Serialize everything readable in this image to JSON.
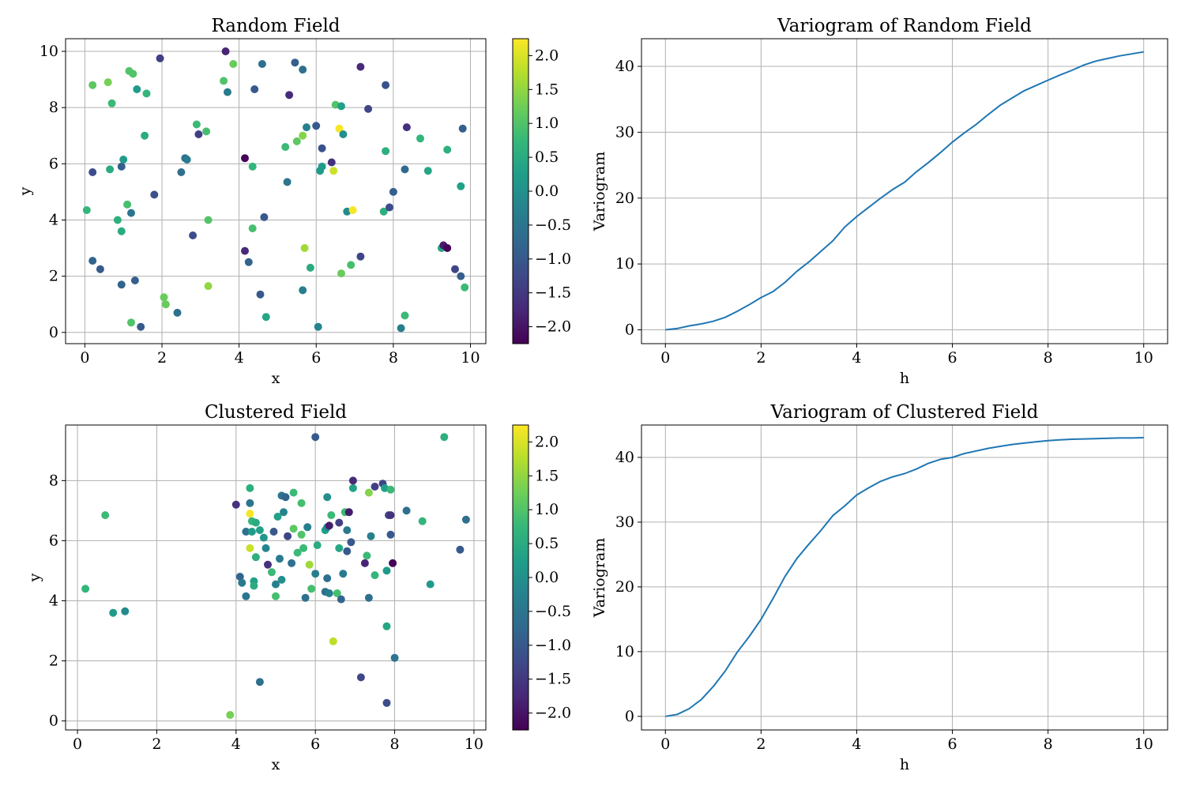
{
  "colors": {
    "line": "#1f77b4",
    "grid": "#b0b0b0",
    "axis": "#000000",
    "viridis": [
      "#440154",
      "#482878",
      "#3e4989",
      "#31688e",
      "#26828e",
      "#1f9e89",
      "#35b779",
      "#6ece58",
      "#b5de2b",
      "#fde725"
    ]
  },
  "chart_data": [
    {
      "id": "random-field",
      "type": "scatter",
      "title": "Random Field",
      "xlabel": "x",
      "ylabel": "y",
      "xlim": [
        -0.5,
        10.4
      ],
      "ylim": [
        -0.4,
        10.45
      ],
      "xticks": [
        0,
        2,
        4,
        6,
        8,
        10
      ],
      "xtick_labels": [
        "0",
        "2",
        "4",
        "6",
        "8",
        "10"
      ],
      "yticks": [
        0,
        2,
        4,
        6,
        8,
        10
      ],
      "ytick_labels": [
        "0",
        "2",
        "4",
        "6",
        "8",
        "10"
      ],
      "grid": true,
      "colorbar": {
        "vmin": -2.25,
        "vmax": 2.25,
        "ticks": [
          2.0,
          1.5,
          1.0,
          0.5,
          0.0,
          -0.5,
          -1.0,
          -1.5,
          -2.0
        ],
        "tick_labels": [
          "2.0",
          "1.5",
          "1.0",
          "0.5",
          "0.0",
          "−0.5",
          "−1.0",
          "−1.5",
          "−2.0"
        ]
      },
      "points": [
        [
          0.05,
          4.35,
          0.7
        ],
        [
          0.2,
          5.7,
          -1.2
        ],
        [
          0.2,
          2.55,
          -0.8
        ],
        [
          0.2,
          8.8,
          1.1
        ],
        [
          0.4,
          2.25,
          -1.0
        ],
        [
          0.6,
          8.9,
          1.3
        ],
        [
          0.65,
          5.8,
          0.5
        ],
        [
          0.7,
          8.15,
          0.8
        ],
        [
          0.85,
          4.0,
          0.6
        ],
        [
          0.95,
          5.9,
          -0.9
        ],
        [
          0.95,
          3.6,
          0.5
        ],
        [
          0.95,
          1.7,
          -0.8
        ],
        [
          1.0,
          6.15,
          0.2
        ],
        [
          1.1,
          4.55,
          0.9
        ],
        [
          1.15,
          9.3,
          1.0
        ],
        [
          1.2,
          4.25,
          -0.5
        ],
        [
          1.2,
          0.35,
          1.0
        ],
        [
          1.25,
          9.2,
          1.0
        ],
        [
          1.3,
          1.85,
          -0.9
        ],
        [
          1.35,
          8.65,
          0.2
        ],
        [
          1.45,
          0.2,
          -1.0
        ],
        [
          1.55,
          7.0,
          0.5
        ],
        [
          1.6,
          8.5,
          0.7
        ],
        [
          1.8,
          4.9,
          -1.1
        ],
        [
          1.95,
          9.75,
          -1.4
        ],
        [
          2.05,
          1.25,
          1.2
        ],
        [
          2.1,
          1.0,
          1.2
        ],
        [
          2.4,
          0.7,
          -0.6
        ],
        [
          2.5,
          5.7,
          -0.6
        ],
        [
          2.6,
          6.2,
          -0.6
        ],
        [
          2.65,
          6.15,
          -0.4
        ],
        [
          2.8,
          3.45,
          -1.2
        ],
        [
          2.9,
          7.4,
          0.8
        ],
        [
          2.95,
          7.05,
          -1.4
        ],
        [
          3.15,
          7.15,
          0.9
        ],
        [
          3.2,
          4.0,
          1.0
        ],
        [
          3.2,
          1.65,
          1.5
        ],
        [
          3.6,
          8.95,
          1.0
        ],
        [
          3.65,
          10.0,
          -1.8
        ],
        [
          3.7,
          8.55,
          -0.4
        ],
        [
          3.85,
          9.55,
          1.2
        ],
        [
          4.15,
          6.2,
          -2.2
        ],
        [
          4.15,
          2.9,
          -1.7
        ],
        [
          4.25,
          2.5,
          -0.8
        ],
        [
          4.35,
          3.7,
          0.9
        ],
        [
          4.35,
          5.9,
          0.7
        ],
        [
          4.4,
          8.65,
          -1.0
        ],
        [
          4.55,
          1.35,
          -1.0
        ],
        [
          4.6,
          9.55,
          -0.6
        ],
        [
          4.65,
          4.1,
          -1.0
        ],
        [
          4.7,
          0.55,
          0.4
        ],
        [
          5.2,
          6.6,
          0.8
        ],
        [
          5.25,
          5.35,
          -0.5
        ],
        [
          5.3,
          8.45,
          -1.7
        ],
        [
          5.45,
          9.6,
          -0.9
        ],
        [
          5.5,
          6.8,
          1.1
        ],
        [
          5.65,
          7.0,
          1.4
        ],
        [
          5.65,
          9.35,
          -0.6
        ],
        [
          5.65,
          1.5,
          -0.3
        ],
        [
          5.7,
          3.0,
          1.6
        ],
        [
          5.75,
          7.3,
          -0.3
        ],
        [
          5.85,
          2.3,
          0.5
        ],
        [
          6.0,
          7.35,
          -1.0
        ],
        [
          6.05,
          0.2,
          -0.2
        ],
        [
          6.1,
          5.75,
          0.2
        ],
        [
          6.15,
          5.9,
          0.2
        ],
        [
          6.15,
          6.55,
          -1.1
        ],
        [
          6.4,
          6.05,
          -1.6
        ],
        [
          6.45,
          5.75,
          1.9
        ],
        [
          6.5,
          8.1,
          1.0
        ],
        [
          6.6,
          7.25,
          2.2
        ],
        [
          6.65,
          8.05,
          0.3
        ],
        [
          6.65,
          2.1,
          1.2
        ],
        [
          6.7,
          7.05,
          0.0
        ],
        [
          6.8,
          4.3,
          -0.1
        ],
        [
          6.95,
          4.35,
          2.2
        ],
        [
          6.9,
          2.4,
          0.9
        ],
        [
          7.15,
          9.45,
          -1.7
        ],
        [
          7.15,
          2.7,
          -1.3
        ],
        [
          7.35,
          7.95,
          -1.3
        ],
        [
          7.75,
          4.3,
          0.6
        ],
        [
          7.8,
          8.8,
          -1.1
        ],
        [
          7.8,
          6.45,
          0.6
        ],
        [
          7.9,
          4.45,
          -1.2
        ],
        [
          8.0,
          5.0,
          -0.9
        ],
        [
          8.2,
          0.15,
          -0.3
        ],
        [
          8.3,
          0.6,
          0.8
        ],
        [
          8.3,
          5.8,
          -0.7
        ],
        [
          8.35,
          7.3,
          -1.6
        ],
        [
          8.7,
          6.9,
          0.7
        ],
        [
          8.9,
          5.75,
          0.4
        ],
        [
          9.25,
          3.0,
          0.4
        ],
        [
          9.3,
          3.1,
          -1.9
        ],
        [
          9.4,
          3.0,
          -2.2
        ],
        [
          9.4,
          6.5,
          0.6
        ],
        [
          9.6,
          2.25,
          -1.3
        ],
        [
          9.75,
          2.0,
          -0.9
        ],
        [
          9.75,
          5.2,
          0.3
        ],
        [
          9.8,
          7.25,
          -0.9
        ],
        [
          9.85,
          1.6,
          0.8
        ]
      ]
    },
    {
      "id": "variogram-random",
      "type": "line",
      "title": "Variogram of Random Field",
      "xlabel": "h",
      "ylabel": "Variogram",
      "xlim": [
        -0.5,
        10.5
      ],
      "ylim": [
        -2.1,
        44.2
      ],
      "xticks": [
        0,
        2,
        4,
        6,
        8,
        10
      ],
      "xtick_labels": [
        "0",
        "2",
        "4",
        "6",
        "8",
        "10"
      ],
      "yticks": [
        0,
        10,
        20,
        30,
        40
      ],
      "ytick_labels": [
        "0",
        "10",
        "20",
        "30",
        "40"
      ],
      "grid": true,
      "x": [
        0,
        0.25,
        0.5,
        0.75,
        1.0,
        1.25,
        1.5,
        1.75,
        2.0,
        2.25,
        2.5,
        2.75,
        3.0,
        3.25,
        3.5,
        3.75,
        4.0,
        4.25,
        4.5,
        4.75,
        5.0,
        5.25,
        5.5,
        5.75,
        6.0,
        6.25,
        6.5,
        6.75,
        7.0,
        7.25,
        7.5,
        7.75,
        8.0,
        8.25,
        8.5,
        8.75,
        9.0,
        9.25,
        9.5,
        9.75,
        10.0
      ],
      "y": [
        0,
        0.2,
        0.6,
        0.9,
        1.3,
        1.9,
        2.8,
        3.8,
        4.9,
        5.8,
        7.2,
        8.9,
        10.3,
        11.9,
        13.5,
        15.6,
        17.2,
        18.6,
        20.0,
        21.3,
        22.4,
        24.0,
        25.4,
        26.9,
        28.5,
        29.9,
        31.2,
        32.7,
        34.1,
        35.2,
        36.3,
        37.1,
        37.9,
        38.7,
        39.4,
        40.2,
        40.8,
        41.2,
        41.6,
        41.9,
        42.2
      ]
    },
    {
      "id": "clustered-field",
      "type": "scatter",
      "title": "Clustered Field",
      "xlabel": "x",
      "ylabel": "y",
      "xlim": [
        -0.3,
        10.3
      ],
      "ylim": [
        -0.3,
        9.85
      ],
      "xticks": [
        0,
        2,
        4,
        6,
        8,
        10
      ],
      "xtick_labels": [
        "0",
        "2",
        "4",
        "6",
        "8",
        "10"
      ],
      "yticks": [
        0,
        2,
        4,
        6,
        8
      ],
      "ytick_labels": [
        "0",
        "2",
        "4",
        "6",
        "8"
      ],
      "grid": true,
      "colorbar": {
        "vmin": -2.25,
        "vmax": 2.25,
        "ticks": [
          2.0,
          1.5,
          1.0,
          0.5,
          0.0,
          -0.5,
          -1.0,
          -1.5,
          -2.0
        ],
        "tick_labels": [
          "2.0",
          "1.5",
          "1.0",
          "0.5",
          "0.0",
          "−0.5",
          "−1.0",
          "−1.5",
          "−2.0"
        ]
      },
      "points": [
        [
          0.2,
          4.4,
          0.7
        ],
        [
          0.7,
          6.85,
          0.8
        ],
        [
          0.9,
          3.6,
          0.2
        ],
        [
          1.2,
          3.65,
          -0.1
        ],
        [
          3.85,
          0.2,
          1.3
        ],
        [
          4.0,
          7.2,
          -1.6
        ],
        [
          4.1,
          4.8,
          -0.8
        ],
        [
          4.15,
          4.6,
          -0.4
        ],
        [
          4.25,
          4.15,
          -0.5
        ],
        [
          4.25,
          6.3,
          -0.6
        ],
        [
          4.35,
          7.75,
          0.6
        ],
        [
          4.35,
          7.25,
          -0.5
        ],
        [
          4.35,
          6.9,
          2.2
        ],
        [
          4.35,
          5.75,
          1.9
        ],
        [
          4.4,
          6.65,
          0.7
        ],
        [
          4.4,
          6.3,
          0.2
        ],
        [
          4.45,
          4.65,
          0.3
        ],
        [
          4.45,
          4.5,
          0.5
        ],
        [
          4.5,
          5.45,
          0.6
        ],
        [
          4.5,
          6.6,
          0.5
        ],
        [
          4.6,
          6.35,
          0.3
        ],
        [
          4.6,
          1.3,
          -0.6
        ],
        [
          4.7,
          6.1,
          0.1
        ],
        [
          4.75,
          5.75,
          -0.2
        ],
        [
          4.8,
          5.2,
          -1.6
        ],
        [
          4.9,
          4.95,
          0.8
        ],
        [
          4.95,
          6.3,
          -1.0
        ],
        [
          5.0,
          4.55,
          -0.3
        ],
        [
          5.0,
          4.15,
          0.9
        ],
        [
          5.05,
          6.8,
          0.3
        ],
        [
          5.1,
          5.4,
          -0.4
        ],
        [
          5.15,
          7.5,
          -0.5
        ],
        [
          5.15,
          4.7,
          0.0
        ],
        [
          5.2,
          6.95,
          -0.2
        ],
        [
          5.25,
          7.45,
          -0.8
        ],
        [
          5.3,
          6.15,
          -1.3
        ],
        [
          5.4,
          5.25,
          -0.6
        ],
        [
          5.45,
          7.6,
          0.8
        ],
        [
          5.45,
          6.4,
          1.1
        ],
        [
          5.55,
          5.6,
          0.8
        ],
        [
          5.65,
          7.25,
          0.9
        ],
        [
          5.65,
          6.2,
          1.0
        ],
        [
          5.7,
          5.75,
          0.8
        ],
        [
          5.75,
          4.1,
          -0.6
        ],
        [
          5.8,
          6.45,
          -0.3
        ],
        [
          5.85,
          5.2,
          1.6
        ],
        [
          5.9,
          4.4,
          0.9
        ],
        [
          6.0,
          9.45,
          -1.0
        ],
        [
          6.0,
          4.9,
          -0.3
        ],
        [
          6.05,
          5.85,
          0.5
        ],
        [
          6.25,
          6.35,
          0.3
        ],
        [
          6.25,
          4.3,
          -0.6
        ],
        [
          6.3,
          7.45,
          0.0
        ],
        [
          6.3,
          6.45,
          -0.2
        ],
        [
          6.35,
          6.5,
          -1.9
        ],
        [
          6.3,
          4.75,
          -0.6
        ],
        [
          6.35,
          4.25,
          -0.3
        ],
        [
          6.4,
          6.85,
          0.8
        ],
        [
          6.45,
          2.65,
          1.8
        ],
        [
          6.55,
          4.25,
          0.9
        ],
        [
          6.6,
          6.6,
          -1.4
        ],
        [
          6.6,
          5.75,
          0.4
        ],
        [
          6.65,
          4.05,
          -0.8
        ],
        [
          6.7,
          4.9,
          -0.4
        ],
        [
          6.75,
          6.95,
          0.8
        ],
        [
          6.8,
          5.65,
          -1.0
        ],
        [
          6.8,
          6.35,
          -0.4
        ],
        [
          6.85,
          6.95,
          -1.9
        ],
        [
          6.9,
          5.95,
          -1.0
        ],
        [
          6.95,
          7.75,
          0.3
        ],
        [
          6.95,
          8.0,
          -1.7
        ],
        [
          7.15,
          1.45,
          -1.3
        ],
        [
          7.25,
          5.25,
          -1.8
        ],
        [
          7.3,
          5.5,
          0.8
        ],
        [
          7.35,
          4.1,
          -0.6
        ],
        [
          7.35,
          7.6,
          1.4
        ],
        [
          7.4,
          6.15,
          -0.3
        ],
        [
          7.5,
          4.85,
          0.7
        ],
        [
          7.5,
          7.8,
          -1.4
        ],
        [
          7.7,
          7.9,
          -1.3
        ],
        [
          7.75,
          7.75,
          0.3
        ],
        [
          7.8,
          3.15,
          0.4
        ],
        [
          7.8,
          0.6,
          -1.2
        ],
        [
          7.8,
          5.0,
          0.2
        ],
        [
          7.85,
          6.85,
          -1.2
        ],
        [
          7.9,
          7.7,
          0.8
        ],
        [
          7.9,
          6.85,
          -1.6
        ],
        [
          7.9,
          6.2,
          -1.0
        ],
        [
          7.95,
          5.25,
          -2.2
        ],
        [
          8.0,
          2.1,
          -0.5
        ],
        [
          8.3,
          7.0,
          -0.6
        ],
        [
          8.7,
          6.65,
          0.7
        ],
        [
          8.9,
          4.55,
          0.2
        ],
        [
          9.25,
          9.45,
          0.6
        ],
        [
          9.65,
          5.7,
          -1.0
        ],
        [
          9.8,
          6.7,
          -0.6
        ]
      ]
    },
    {
      "id": "variogram-clustered",
      "type": "line",
      "title": "Variogram of Clustered Field",
      "xlabel": "h",
      "ylabel": "Variogram",
      "xlim": [
        -0.5,
        10.5
      ],
      "ylim": [
        -2.1,
        45.0
      ],
      "xticks": [
        0,
        2,
        4,
        6,
        8,
        10
      ],
      "xtick_labels": [
        "0",
        "2",
        "4",
        "6",
        "8",
        "10"
      ],
      "yticks": [
        0,
        10,
        20,
        30,
        40
      ],
      "ytick_labels": [
        "0",
        "10",
        "20",
        "30",
        "40"
      ],
      "grid": true,
      "x": [
        0,
        0.25,
        0.5,
        0.75,
        1.0,
        1.25,
        1.5,
        1.75,
        2.0,
        2.25,
        2.5,
        2.75,
        3.0,
        3.25,
        3.5,
        3.75,
        4.0,
        4.25,
        4.5,
        4.75,
        5.0,
        5.25,
        5.5,
        5.75,
        6.0,
        6.25,
        6.5,
        6.75,
        7.0,
        7.25,
        7.5,
        7.75,
        8.0,
        8.25,
        8.5,
        8.75,
        9.0,
        9.25,
        9.5,
        9.75,
        10.0
      ],
      "y": [
        0,
        0.3,
        1.2,
        2.6,
        4.6,
        7.0,
        9.9,
        12.3,
        15.0,
        18.2,
        21.6,
        24.4,
        26.6,
        28.7,
        31.0,
        32.5,
        34.2,
        35.3,
        36.3,
        37.0,
        37.5,
        38.2,
        39.1,
        39.7,
        40.0,
        40.6,
        41.0,
        41.4,
        41.7,
        42.0,
        42.2,
        42.4,
        42.6,
        42.7,
        42.8,
        42.85,
        42.9,
        42.95,
        43.0,
        43.0,
        43.05
      ]
    }
  ]
}
